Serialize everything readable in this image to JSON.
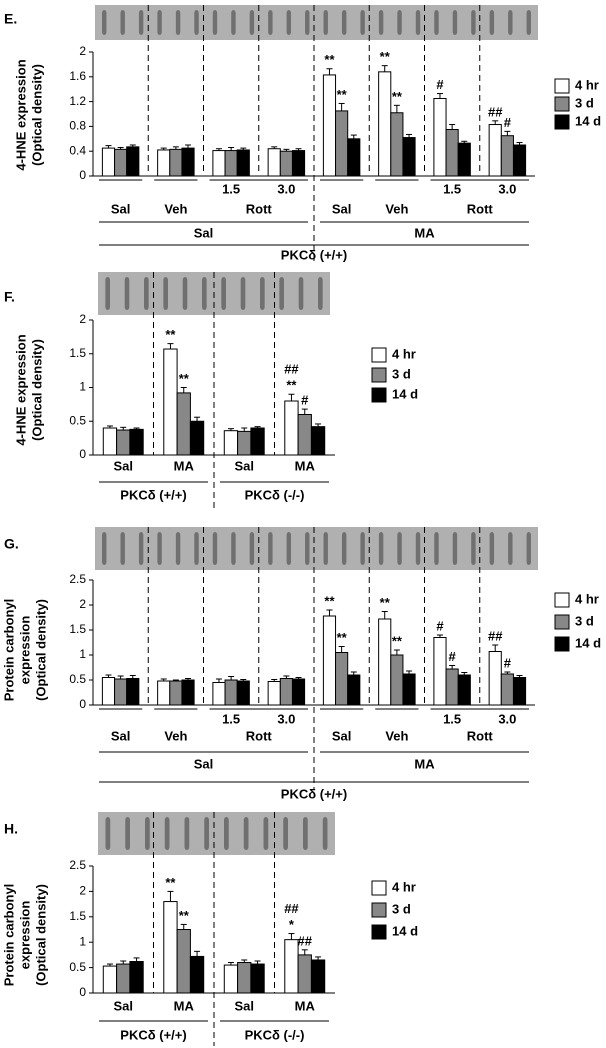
{
  "chart_data": [
    {
      "type": "bar",
      "panel": "E.",
      "ylabel": [
        "4-HNE expression",
        "(Optical density)"
      ],
      "categories": [
        null,
        null,
        "1.5",
        "3.0",
        null,
        null,
        "1.5",
        "3.0"
      ],
      "category_groups": [
        [
          {
            "label": "Sal",
            "span": 1
          },
          {
            "label": "Veh",
            "span": 1
          },
          {
            "label": "Rott",
            "span": 2
          },
          {
            "label": "Sal",
            "span": 1
          },
          {
            "label": "Veh",
            "span": 1
          },
          {
            "label": "Rott",
            "span": 2
          }
        ],
        [
          {
            "label": "Sal",
            "span": 4
          },
          {
            "label": "MA",
            "span": 4
          }
        ],
        [
          {
            "label": "PKCδ (+/+)",
            "span": 8
          }
        ]
      ],
      "ylim": [
        0,
        2
      ],
      "yticks": [
        0,
        0.4,
        0.8,
        1.2,
        1.6,
        2
      ],
      "series": [
        {
          "name": "4 hr",
          "color": "#ffffff",
          "values": [
            0.45,
            0.42,
            0.41,
            0.44,
            1.63,
            1.68,
            1.25,
            0.83
          ],
          "errors": [
            0.04,
            0.03,
            0.03,
            0.03,
            0.1,
            0.1,
            0.08,
            0.06
          ],
          "annotations": [
            null,
            null,
            null,
            null,
            [
              "**"
            ],
            [
              "**"
            ],
            [
              "#"
            ],
            [
              "##"
            ]
          ]
        },
        {
          "name": "3 d",
          "color": "#888888",
          "values": [
            0.43,
            0.43,
            0.41,
            0.4,
            1.05,
            1.02,
            0.75,
            0.65
          ],
          "errors": [
            0.03,
            0.04,
            0.05,
            0.03,
            0.12,
            0.12,
            0.08,
            0.07
          ],
          "annotations": [
            null,
            null,
            null,
            null,
            [
              "**"
            ],
            [
              "**"
            ],
            null,
            [
              "#"
            ]
          ]
        },
        {
          "name": "14 d",
          "color": "#000000",
          "values": [
            0.47,
            0.45,
            0.42,
            0.41,
            0.6,
            0.62,
            0.53,
            0.5
          ],
          "errors": [
            0.03,
            0.05,
            0.03,
            0.03,
            0.06,
            0.05,
            0.03,
            0.04
          ]
        }
      ]
    },
    {
      "type": "bar",
      "panel": "F.",
      "ylabel": [
        "4-HNE expression",
        "(Optical density)"
      ],
      "categories": [
        "Sal",
        "MA",
        "Sal",
        "MA"
      ],
      "category_groups": [
        [
          {
            "label": "PKCδ (+/+)",
            "span": 2
          },
          {
            "label": "PKCδ (-/-)",
            "span": 2
          }
        ]
      ],
      "ylim": [
        0,
        2
      ],
      "yticks": [
        0,
        0.5,
        1,
        1.5,
        2
      ],
      "series": [
        {
          "name": "4 hr",
          "color": "#ffffff",
          "values": [
            0.4,
            1.57,
            0.36,
            0.8
          ],
          "errors": [
            0.03,
            0.08,
            0.03,
            0.1
          ],
          "annotations": [
            null,
            [
              "**"
            ],
            null,
            [
              "##",
              "**"
            ]
          ]
        },
        {
          "name": "3 d",
          "color": "#888888",
          "values": [
            0.37,
            0.92,
            0.35,
            0.6
          ],
          "errors": [
            0.04,
            0.08,
            0.05,
            0.08
          ],
          "annotations": [
            null,
            [
              "**"
            ],
            null,
            [
              "#"
            ]
          ]
        },
        {
          "name": "14 d",
          "color": "#000000",
          "values": [
            0.38,
            0.5,
            0.4,
            0.42
          ],
          "errors": [
            0.02,
            0.06,
            0.02,
            0.04
          ]
        }
      ]
    },
    {
      "type": "bar",
      "panel": "G.",
      "ylabel": [
        "Protein carbonyl",
        "expression",
        "(Optical density)"
      ],
      "categories": [
        null,
        null,
        "1.5",
        "3.0",
        null,
        null,
        "1.5",
        "3.0"
      ],
      "category_groups": [
        [
          {
            "label": "Sal",
            "span": 1
          },
          {
            "label": "Veh",
            "span": 1
          },
          {
            "label": "Rott",
            "span": 2
          },
          {
            "label": "Sal",
            "span": 1
          },
          {
            "label": "Veh",
            "span": 1
          },
          {
            "label": "Rott",
            "span": 2
          }
        ],
        [
          {
            "label": "Sal",
            "span": 4
          },
          {
            "label": "MA",
            "span": 4
          }
        ],
        [
          {
            "label": "PKCδ (+/+)",
            "span": 8
          }
        ]
      ],
      "ylim": [
        0,
        2.5
      ],
      "yticks": [
        0,
        0.5,
        1,
        1.5,
        2,
        2.5
      ],
      "series": [
        {
          "name": "4 hr",
          "color": "#ffffff",
          "values": [
            0.55,
            0.48,
            0.45,
            0.47,
            1.78,
            1.72,
            1.35,
            1.07
          ],
          "errors": [
            0.05,
            0.04,
            0.07,
            0.04,
            0.12,
            0.15,
            0.05,
            0.13
          ],
          "annotations": [
            null,
            null,
            null,
            null,
            [
              "**"
            ],
            [
              "**"
            ],
            [
              "#"
            ],
            [
              "##"
            ]
          ]
        },
        {
          "name": "3 d",
          "color": "#888888",
          "values": [
            0.52,
            0.48,
            0.5,
            0.53,
            1.05,
            1.0,
            0.72,
            0.62
          ],
          "errors": [
            0.06,
            0.02,
            0.07,
            0.05,
            0.12,
            0.1,
            0.07,
            0.04
          ],
          "annotations": [
            null,
            null,
            null,
            null,
            [
              "**"
            ],
            [
              "**"
            ],
            [
              "#"
            ],
            [
              "#"
            ]
          ]
        },
        {
          "name": "14 d",
          "color": "#000000",
          "values": [
            0.53,
            0.5,
            0.48,
            0.52,
            0.6,
            0.62,
            0.6,
            0.55
          ],
          "errors": [
            0.06,
            0.03,
            0.03,
            0.03,
            0.06,
            0.06,
            0.05,
            0.04
          ]
        }
      ]
    },
    {
      "type": "bar",
      "panel": "H.",
      "ylabel": [
        "Protein carbonyl",
        "expression",
        "(Optical density)"
      ],
      "categories": [
        "Sal",
        "MA",
        "Sal",
        "MA"
      ],
      "category_groups": [
        [
          {
            "label": "PKCδ (+/+)",
            "span": 2
          },
          {
            "label": "PKCδ (-/-)",
            "span": 2
          }
        ]
      ],
      "ylim": [
        0,
        2.5
      ],
      "yticks": [
        0,
        0.5,
        1,
        1.5,
        2,
        2.5
      ],
      "series": [
        {
          "name": "4 hr",
          "color": "#ffffff",
          "values": [
            0.53,
            1.8,
            0.55,
            1.05
          ],
          "errors": [
            0.04,
            0.2,
            0.05,
            0.12
          ],
          "annotations": [
            null,
            [
              "**"
            ],
            null,
            [
              "##",
              "*"
            ]
          ]
        },
        {
          "name": "3 d",
          "color": "#888888",
          "values": [
            0.57,
            1.25,
            0.6,
            0.75
          ],
          "errors": [
            0.06,
            0.1,
            0.05,
            0.1
          ],
          "annotations": [
            null,
            [
              "**"
            ],
            null,
            [
              "##"
            ]
          ]
        },
        {
          "name": "14 d",
          "color": "#000000",
          "values": [
            0.62,
            0.72,
            0.57,
            0.65
          ],
          "errors": [
            0.07,
            0.1,
            0.06,
            0.06
          ]
        }
      ]
    }
  ]
}
